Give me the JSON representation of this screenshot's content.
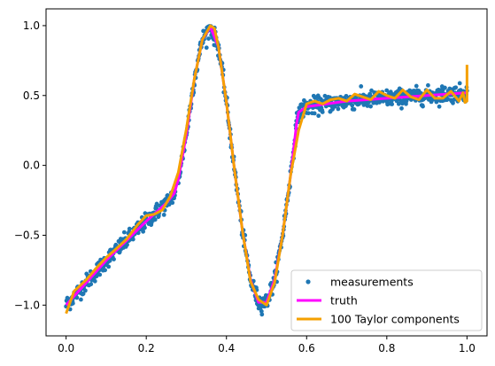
{
  "chart_data": {
    "type": "scatter",
    "title": "",
    "xlabel": "",
    "ylabel": "",
    "xlim": [
      -0.05,
      1.05
    ],
    "ylim": [
      -1.22,
      1.12
    ],
    "xticks": [
      0.0,
      0.2,
      0.4,
      0.6,
      0.8,
      1.0
    ],
    "xtick_labels": [
      "0.0",
      "0.2",
      "0.4",
      "0.6",
      "0.8",
      "1.0"
    ],
    "yticks": [
      -1.0,
      -0.5,
      0.0,
      0.5,
      1.0
    ],
    "ytick_labels": [
      "−1.0",
      "−0.5",
      "0.0",
      "0.5",
      "1.0"
    ],
    "grid": false,
    "legend_position": "lower-right",
    "series": [
      {
        "name": "measurements",
        "kind": "scatter",
        "color": "#1f77b4",
        "n_points": 1000,
        "noise_sd": 0.03
      },
      {
        "name": "truth",
        "kind": "line",
        "color": "#ff00ff",
        "x": [
          0.0,
          0.05,
          0.1,
          0.15,
          0.2,
          0.25,
          0.27,
          0.28,
          0.3,
          0.32,
          0.34,
          0.36,
          0.38,
          0.4,
          0.42,
          0.44,
          0.46,
          0.48,
          0.5,
          0.52,
          0.54,
          0.56,
          0.575,
          0.58,
          0.6,
          0.65,
          0.7,
          0.75,
          0.8,
          0.85,
          0.9,
          0.95,
          1.0
        ],
        "y": [
          -1.0,
          -0.84,
          -0.68,
          -0.54,
          -0.4,
          -0.27,
          -0.2,
          -0.1,
          0.22,
          0.62,
          0.9,
          0.99,
          0.85,
          0.45,
          -0.03,
          -0.47,
          -0.82,
          -0.98,
          -0.98,
          -0.82,
          -0.5,
          -0.07,
          0.3,
          0.38,
          0.42,
          0.44,
          0.46,
          0.47,
          0.48,
          0.49,
          0.5,
          0.51,
          0.52
        ]
      },
      {
        "name": "100 Taylor components",
        "kind": "line",
        "color": "#f5a000",
        "x": [
          0.0,
          0.02,
          0.05,
          0.08,
          0.1,
          0.12,
          0.15,
          0.18,
          0.2,
          0.22,
          0.24,
          0.26,
          0.28,
          0.3,
          0.32,
          0.34,
          0.36,
          0.37,
          0.38,
          0.4,
          0.42,
          0.44,
          0.46,
          0.48,
          0.5,
          0.52,
          0.54,
          0.56,
          0.58,
          0.6,
          0.62,
          0.64,
          0.66,
          0.68,
          0.7,
          0.72,
          0.74,
          0.76,
          0.78,
          0.8,
          0.82,
          0.84,
          0.86,
          0.88,
          0.9,
          0.92,
          0.94,
          0.96,
          0.98,
          0.99,
          0.995,
          1.0,
          1.0
        ],
        "y": [
          -1.06,
          -0.9,
          -0.82,
          -0.72,
          -0.66,
          -0.61,
          -0.53,
          -0.42,
          -0.36,
          -0.35,
          -0.32,
          -0.22,
          -0.05,
          0.26,
          0.62,
          0.9,
          1.0,
          0.98,
          0.85,
          0.45,
          -0.03,
          -0.47,
          -0.83,
          -0.96,
          -1.0,
          -0.84,
          -0.5,
          -0.07,
          0.25,
          0.44,
          0.46,
          0.44,
          0.47,
          0.48,
          0.46,
          0.51,
          0.49,
          0.47,
          0.53,
          0.5,
          0.48,
          0.54,
          0.49,
          0.47,
          0.54,
          0.48,
          0.48,
          0.53,
          0.46,
          0.52,
          0.45,
          0.46,
          0.72
        ]
      }
    ]
  }
}
